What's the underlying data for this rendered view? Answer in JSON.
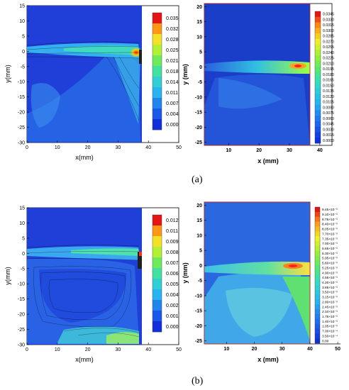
{
  "figure": {
    "label_a": "(a)",
    "label_b": "(b)"
  },
  "chart_data": [
    {
      "type": "heatmap",
      "panel": "simulation-a",
      "xlabel": "x(mm)",
      "ylabel": "y(mm)",
      "xlim": [
        0,
        50
      ],
      "ylim": [
        -30,
        15
      ],
      "xticks": [
        "0",
        "10",
        "20",
        "30",
        "40",
        "50"
      ],
      "yticks": [
        "15",
        "10",
        "5",
        "0",
        "-5",
        "-10",
        "-15",
        "-20",
        "-25",
        "-30"
      ],
      "domain_x": [
        0,
        38
      ],
      "domain_y": [
        -30,
        15
      ],
      "colorbar": {
        "min": 0,
        "max": 0.035,
        "labels": [
          "0.035",
          "0.032",
          "0.028",
          "0.025",
          "0.021",
          "0.018",
          "0.014",
          "0.011",
          "0.007",
          "0.004",
          "0.000"
        ]
      },
      "legend_position": "right"
    },
    {
      "type": "heatmap",
      "panel": "experiment-a",
      "xlabel": "x (mm)",
      "ylabel": "y (mm)",
      "xlim": [
        2,
        44
      ],
      "ylim": [
        -26,
        21
      ],
      "xticks": [
        "10",
        "20",
        "30",
        "40"
      ],
      "yticks": [
        "20",
        "15",
        "10",
        "5",
        "0",
        "-5",
        "-10",
        "-15",
        "-20",
        "-25"
      ],
      "domain_x": [
        2,
        37
      ],
      "domain_y": [
        -26,
        21
      ],
      "colorbar": {
        "min": 0,
        "max": 0.0345,
        "labels": [
          "0.0345",
          "0.0330",
          "0.0315",
          "0.0300",
          "0.0285",
          "0.0270",
          "0.0255",
          "0.0240",
          "0.0225",
          "0.0210",
          "0.0195",
          "0.0180",
          "0.0165",
          "0.0150",
          "0.0135",
          "0.0120",
          "0.0105",
          "0.0090",
          "0.0075",
          "0.0060",
          "0.0045",
          "0.0030",
          "0.0015",
          "0.0000"
        ]
      },
      "legend_position": "right"
    },
    {
      "type": "heatmap",
      "panel": "simulation-b",
      "xlabel": "x(mm)",
      "ylabel": "y(mm)",
      "xlim": [
        0,
        50
      ],
      "ylim": [
        -30,
        15
      ],
      "xticks": [
        "0",
        "10",
        "20",
        "30",
        "40",
        "50"
      ],
      "yticks": [
        "15",
        "10",
        "5",
        "0",
        "-5",
        "-10",
        "-15",
        "-20",
        "-25",
        "-30"
      ],
      "domain_x": [
        0,
        38
      ],
      "domain_y": [
        -30,
        15
      ],
      "colorbar": {
        "min": 0,
        "max": 0.012,
        "labels": [
          "0.012",
          "0.011",
          "0.009",
          "0.008",
          "0.007",
          "0.006",
          "0.005",
          "0.004",
          "0.002",
          "0.001",
          "0.000"
        ]
      },
      "legend_position": "right"
    },
    {
      "type": "heatmap",
      "panel": "experiment-b",
      "xlabel": "x (mm)",
      "ylabel": "y (mm)",
      "xlim": [
        2,
        51
      ],
      "ylim": [
        -26,
        21
      ],
      "xticks": [
        "10",
        "20",
        "30",
        "40",
        "50"
      ],
      "yticks": [
        "20",
        "15",
        "10",
        "5",
        "0",
        "-5",
        "-10",
        "-15",
        "-20",
        "-25"
      ],
      "domain_x": [
        2,
        37
      ],
      "domain_y": [
        -26,
        21
      ],
      "colorbar": {
        "min": 0,
        "max": 0.00945,
        "labels": [
          "9.45×10⁻³",
          "9.10×10⁻³",
          "8.75×10⁻³",
          "8.40×10⁻³",
          "8.05×10⁻³",
          "7.70×10⁻³",
          "7.35×10⁻³",
          "7.00×10⁻³",
          "6.65×10⁻³",
          "6.30×10⁻³",
          "5.95×10⁻³",
          "5.60×10⁻³",
          "5.25×10⁻³",
          "4.90×10⁻³",
          "4.55×10⁻³",
          "4.20×10⁻³",
          "3.85×10⁻³",
          "3.50×10⁻³",
          "3.15×10⁻³",
          "2.80×10⁻³",
          "2.45×10⁻³",
          "2.10×10⁻³",
          "1.75×10⁻³",
          "1.40×10⁻³",
          "1.05×10⁻³",
          "7.00×10⁻⁴",
          "3.50×10⁻⁴",
          "0.00"
        ]
      },
      "legend_position": "right"
    }
  ]
}
